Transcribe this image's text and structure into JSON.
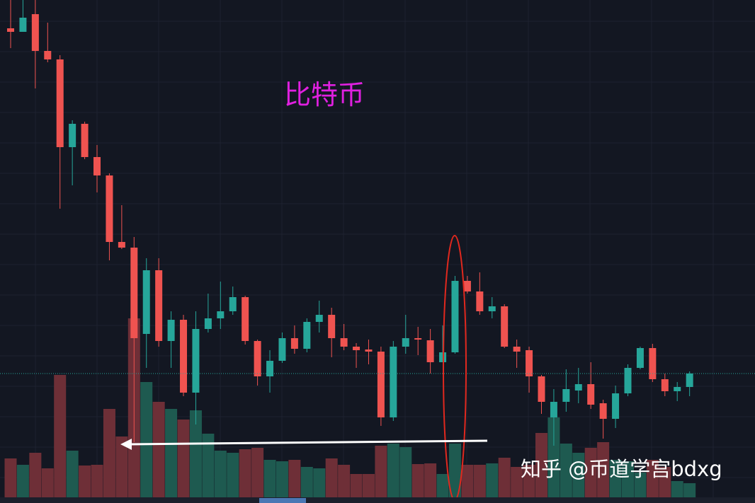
{
  "chart_data": {
    "type": "candlestick",
    "title": "比特币",
    "watermark": "知乎 @币道学宫bdxg",
    "up_color": "#26a69a",
    "down_color": "#ef5350",
    "up_volume_color": "#1e5a50",
    "down_volume_color": "#6e2f37",
    "ylim": [
      0,
      711
    ],
    "y2lim": [
      0,
      703
    ],
    "open": [
      671,
      666,
      691,
      639,
      627,
      503,
      536,
      489,
      463,
      369,
      361,
      239,
      329,
      229,
      259,
      156,
      246,
      261,
      271,
      291,
      229,
      179,
      201,
      233,
      218,
      256,
      266,
      233,
      221,
      217,
      214,
      121,
      221,
      233,
      230,
      199,
      213,
      314,
      299,
      271,
      278,
      221,
      216,
      179,
      121,
      143,
      159,
      168,
      141,
      119,
      155,
      191,
      219,
      175,
      158,
      164
    ],
    "high": [
      711,
      711,
      711,
      679,
      633,
      541,
      539,
      506,
      466,
      421,
      376,
      346,
      346,
      271,
      266,
      271,
      296,
      313,
      306,
      293,
      231,
      216,
      241,
      251,
      261,
      286,
      276,
      253,
      226,
      231,
      221,
      229,
      266,
      249,
      246,
      251,
      321,
      321,
      326,
      291,
      281,
      231,
      221,
      181,
      161,
      189,
      191,
      199,
      146,
      166,
      196,
      221,
      225,
      183,
      171,
      186
    ],
    "low": [
      643,
      666,
      586,
      623,
      416,
      449,
      486,
      439,
      343,
      359,
      86,
      191,
      221,
      191,
      151,
      111,
      241,
      246,
      266,
      224,
      166,
      156,
      198,
      211,
      213,
      241,
      206,
      216,
      191,
      196,
      109,
      116,
      211,
      209,
      183,
      199,
      211,
      296,
      266,
      261,
      219,
      191,
      156,
      126,
      81,
      129,
      141,
      133,
      91,
      106,
      151,
      189,
      171,
      151,
      144,
      151
    ],
    "close": [
      666,
      686,
      639,
      627,
      503,
      536,
      489,
      463,
      369,
      361,
      233,
      329,
      229,
      259,
      156,
      246,
      261,
      271,
      291,
      229,
      179,
      201,
      233,
      218,
      256,
      266,
      233,
      221,
      216,
      214,
      121,
      221,
      233,
      231,
      199,
      213,
      314,
      299,
      271,
      278,
      221,
      214,
      179,
      143,
      143,
      161,
      168,
      139,
      119,
      155,
      191,
      219,
      175,
      158,
      164,
      183
    ],
    "volume": [
      55,
      46,
      63,
      41,
      173,
      66,
      45,
      46,
      125,
      86,
      253,
      163,
      135,
      125,
      110,
      123,
      90,
      66,
      63,
      68,
      70,
      53,
      51,
      53,
      43,
      41,
      55,
      46,
      33,
      33,
      73,
      76,
      71,
      47,
      48,
      33,
      76,
      46,
      46,
      48,
      56,
      43,
      46,
      91,
      113,
      76,
      63,
      70,
      78,
      53,
      51,
      35,
      53,
      43,
      23,
      20
    ]
  }
}
